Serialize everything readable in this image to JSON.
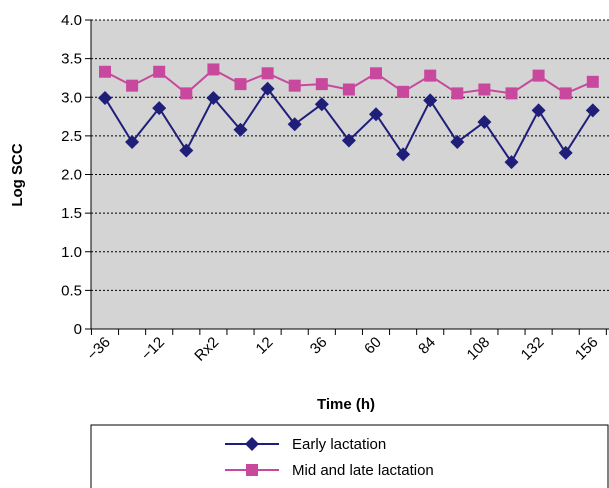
{
  "chart_data": {
    "type": "line",
    "title": "",
    "xlabel": "Time (h)",
    "ylabel": "Log SCC",
    "ylim": [
      0,
      4.0
    ],
    "y_ticks": [
      "0",
      "0.5",
      "1.0",
      "1.5",
      "2.0",
      "2.5",
      "3.0",
      "3.5",
      "4.0"
    ],
    "x_tick_labels": [
      "−36",
      "−12",
      "Rx2",
      "12",
      "36",
      "60",
      "84",
      "108",
      "132",
      "156"
    ],
    "grid": "horizontal dashed",
    "legend_position": "bottom",
    "background": "#d4d4d4",
    "series": [
      {
        "name": "Early lactation",
        "color": "#1f1f7a",
        "marker": "diamond",
        "values": [
          2.99,
          2.42,
          2.86,
          2.31,
          2.99,
          2.58,
          3.11,
          2.65,
          2.91,
          2.44,
          2.78,
          2.26,
          2.96,
          2.42,
          2.68,
          2.16,
          2.83,
          2.28,
          2.83
        ]
      },
      {
        "name": "Mid and late lactation",
        "color": "#c8489e",
        "marker": "square",
        "values": [
          3.33,
          3.15,
          3.33,
          3.05,
          3.36,
          3.17,
          3.31,
          3.15,
          3.17,
          3.1,
          3.31,
          3.07,
          3.28,
          3.05,
          3.1,
          3.05,
          3.28,
          3.05,
          3.2
        ]
      }
    ]
  }
}
